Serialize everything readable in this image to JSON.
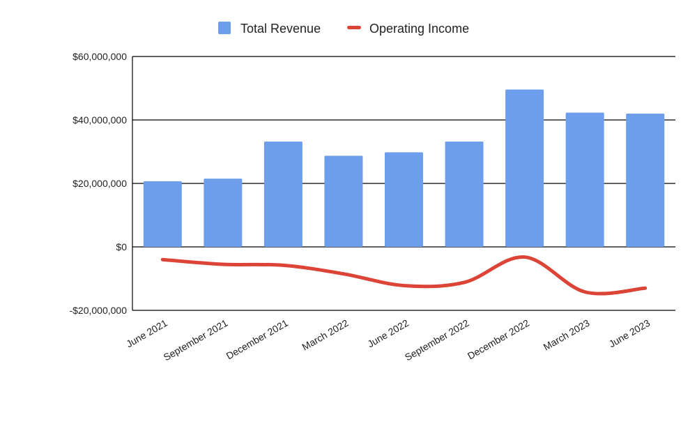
{
  "chart_data": {
    "type": "bar",
    "title": "",
    "xlabel": "",
    "ylabel": "",
    "categories": [
      "June 2021",
      "September 2021",
      "December 2021",
      "March 2022",
      "June 2022",
      "September 2022",
      "December 2022",
      "March 2023",
      "June 2023"
    ],
    "series": [
      {
        "name": "Total Revenue",
        "type": "bar",
        "color": "#6d9eeb",
        "values": [
          20700000,
          21500000,
          33200000,
          28700000,
          29800000,
          33200000,
          49600000,
          42300000,
          42000000
        ]
      },
      {
        "name": "Operating Income",
        "type": "line",
        "smooth": true,
        "color": "#db4437",
        "values": [
          -4000000,
          -5500000,
          -5800000,
          -8500000,
          -12200000,
          -11200000,
          -3200000,
          -14200000,
          -13000000
        ]
      }
    ],
    "y_ticks": [
      {
        "value": -20000000,
        "label": "-$20,000,000"
      },
      {
        "value": 0,
        "label": "$0"
      },
      {
        "value": 20000000,
        "label": "$20,000,000"
      },
      {
        "value": 40000000,
        "label": "$40,000,000"
      },
      {
        "value": 60000000,
        "label": "$60,000,000"
      }
    ],
    "ylim": [
      -20000000,
      60000000
    ],
    "grid": true,
    "legend_position": "top-center"
  }
}
